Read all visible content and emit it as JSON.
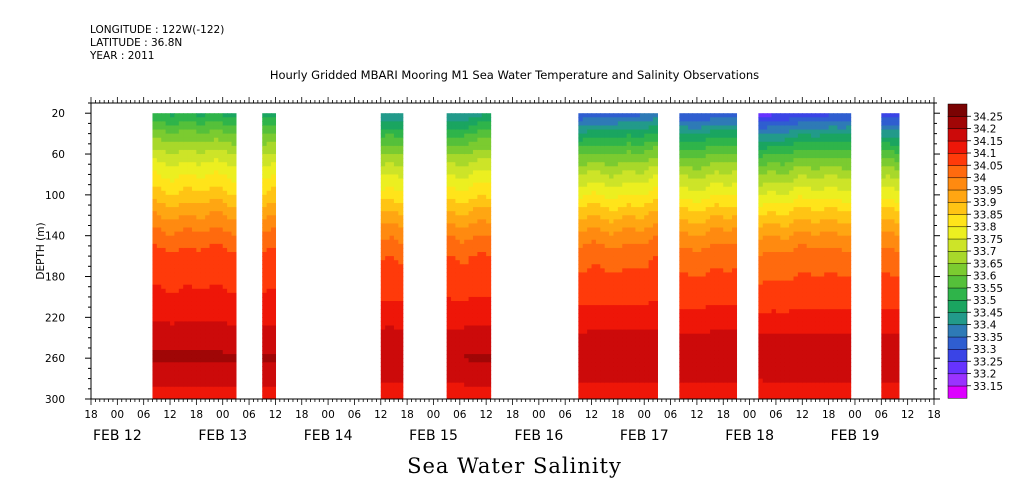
{
  "meta": {
    "longitude": "LONGITUDE : 122W(-122)",
    "latitude": "LATITUDE : 36.8N",
    "year": "YEAR : 2011"
  },
  "title": "Hourly Gridded MBARI Mooring M1 Sea Water Temperature and Salinity Observations",
  "bottom_title": "Sea Water Salinity",
  "chart_data": {
    "type": "heatmap",
    "title": "Hourly Gridded MBARI Mooring M1 Sea Water Temperature and Salinity Observations",
    "xlabel": "",
    "ylabel": "DEPTH (m)",
    "x_unit": "hours since FEB 12 00",
    "x_range": [
      -6,
      186
    ],
    "y_range": [
      10,
      300
    ],
    "y_inverted": true,
    "y_ticks": [
      20,
      60,
      100,
      140,
      180,
      220,
      260,
      300
    ],
    "x_hour_ticks": [
      {
        "t": -6,
        "label": "18"
      },
      {
        "t": 0,
        "label": "00"
      },
      {
        "t": 6,
        "label": "06"
      },
      {
        "t": 12,
        "label": "12"
      },
      {
        "t": 18,
        "label": "18"
      },
      {
        "t": 24,
        "label": "00"
      },
      {
        "t": 30,
        "label": "06"
      },
      {
        "t": 36,
        "label": "12"
      },
      {
        "t": 42,
        "label": "18"
      },
      {
        "t": 48,
        "label": "00"
      },
      {
        "t": 54,
        "label": "06"
      },
      {
        "t": 60,
        "label": "12"
      },
      {
        "t": 66,
        "label": "18"
      },
      {
        "t": 72,
        "label": "00"
      },
      {
        "t": 78,
        "label": "06"
      },
      {
        "t": 84,
        "label": "12"
      },
      {
        "t": 90,
        "label": "18"
      },
      {
        "t": 96,
        "label": "00"
      },
      {
        "t": 102,
        "label": "06"
      },
      {
        "t": 108,
        "label": "12"
      },
      {
        "t": 114,
        "label": "18"
      },
      {
        "t": 120,
        "label": "00"
      },
      {
        "t": 126,
        "label": "06"
      },
      {
        "t": 132,
        "label": "12"
      },
      {
        "t": 138,
        "label": "18"
      },
      {
        "t": 144,
        "label": "00"
      },
      {
        "t": 150,
        "label": "06"
      },
      {
        "t": 156,
        "label": "12"
      },
      {
        "t": 162,
        "label": "18"
      },
      {
        "t": 168,
        "label": "00"
      },
      {
        "t": 174,
        "label": "06"
      },
      {
        "t": 180,
        "label": "12"
      },
      {
        "t": 186,
        "label": "18"
      }
    ],
    "x_date_labels": [
      {
        "t": 0,
        "label": "FEB 12"
      },
      {
        "t": 24,
        "label": "FEB 13"
      },
      {
        "t": 48,
        "label": "FEB 14"
      },
      {
        "t": 72,
        "label": "FEB 15"
      },
      {
        "t": 96,
        "label": "FEB 16"
      },
      {
        "t": 120,
        "label": "FEB 17"
      },
      {
        "t": 144,
        "label": "FEB 18"
      },
      {
        "t": 168,
        "label": "FEB 19"
      }
    ],
    "data_segments": [
      {
        "start": 8,
        "end": 27,
        "min_depth": 20
      },
      {
        "start": 33,
        "end": 36,
        "min_depth": 20
      },
      {
        "start": 60,
        "end": 65,
        "min_depth": 20
      },
      {
        "start": 75,
        "end": 85,
        "min_depth": 20
      },
      {
        "start": 105,
        "end": 123,
        "min_depth": 20
      },
      {
        "start": 128,
        "end": 141,
        "min_depth": 20
      },
      {
        "start": 146,
        "end": 167,
        "min_depth": 20
      },
      {
        "start": 174,
        "end": 178,
        "min_depth": 20
      }
    ],
    "salinity_profile": [
      {
        "depth": 20,
        "value": 33.5
      },
      {
        "depth": 40,
        "value": 33.62
      },
      {
        "depth": 60,
        "value": 33.72
      },
      {
        "depth": 80,
        "value": 33.8
      },
      {
        "depth": 100,
        "value": 33.87
      },
      {
        "depth": 120,
        "value": 33.95
      },
      {
        "depth": 140,
        "value": 34.02
      },
      {
        "depth": 160,
        "value": 34.07
      },
      {
        "depth": 180,
        "value": 34.09
      },
      {
        "depth": 200,
        "value": 34.11
      },
      {
        "depth": 220,
        "value": 34.14
      },
      {
        "depth": 240,
        "value": 34.18
      },
      {
        "depth": 260,
        "value": 34.21
      },
      {
        "depth": 280,
        "value": 34.17
      },
      {
        "depth": 300,
        "value": 34.12
      }
    ],
    "surface_freshening": [
      {
        "t": 8,
        "value": 0
      },
      {
        "t": 27,
        "value": 0.02
      },
      {
        "t": 33,
        "value": 0.03
      },
      {
        "t": 60,
        "value": 0.1
      },
      {
        "t": 75,
        "value": 0.12
      },
      {
        "t": 85,
        "value": 0.05
      },
      {
        "t": 105,
        "value": 0.2
      },
      {
        "t": 123,
        "value": 0.15
      },
      {
        "t": 128,
        "value": 0.22
      },
      {
        "t": 141,
        "value": 0.18
      },
      {
        "t": 146,
        "value": 0.28
      },
      {
        "t": 167,
        "value": 0.2
      },
      {
        "t": 174,
        "value": 0.25
      },
      {
        "t": 178,
        "value": 0.25
      }
    ],
    "colorbar": {
      "levels": [
        "33.15",
        "33.2",
        "33.25",
        "33.3",
        "33.35",
        "33.4",
        "33.45",
        "33.5",
        "33.55",
        "33.6",
        "33.65",
        "33.7",
        "33.75",
        "33.8",
        "33.85",
        "33.9",
        "33.95",
        "34",
        "34.05",
        "34.1",
        "34.15",
        "34.2",
        "34.25"
      ],
      "colors": [
        "#dd00ff",
        "#9a33ff",
        "#6633ff",
        "#3a44e6",
        "#2f5ed0",
        "#2e7ab6",
        "#229a8a",
        "#1aa560",
        "#2fb44a",
        "#55c03a",
        "#7bcb30",
        "#a8d82a",
        "#cde428",
        "#ecef20",
        "#ffe41a",
        "#ffc414",
        "#ffa612",
        "#ff8a10",
        "#ff6a0e",
        "#ff3a0a",
        "#ee1608",
        "#cc0a0a",
        "#a00606",
        "#7a0303"
      ],
      "placement": "right"
    }
  }
}
